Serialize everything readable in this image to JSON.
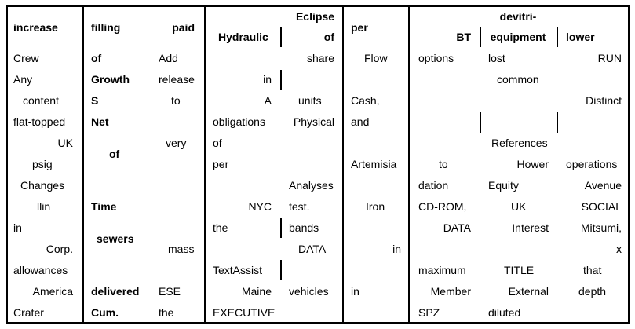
{
  "headers": {
    "increase": "increase",
    "filling": "filling",
    "paid": "paid",
    "hydraulic": "Hydraulic",
    "eclipse": "Eclipse",
    "of": "of",
    "per": "per",
    "devitri": "devitri-",
    "bt": "BT",
    "equipment": "equipment",
    "lower": "lower"
  },
  "col1": {
    "r1": "Crew",
    "r2": "Any",
    "r3": "content",
    "r4": "flat-topped",
    "r5": "UK",
    "r6": "psig",
    "r7": "Changes",
    "r8": "llin",
    "r9": "in",
    "r10": "Corp.",
    "r11": "allowances",
    "r12": "America",
    "r13": "Crater"
  },
  "col2": {
    "r1": "of",
    "r2": "Growth",
    "r3": "S",
    "r4": "Net",
    "r5": "of",
    "r8": "Time",
    "r9": "sewers",
    "r12": "delivered",
    "r13": "Cum."
  },
  "col3": {
    "r1": "Add",
    "r2": "release",
    "r3": "to",
    "r5": "very",
    "r10": "mass",
    "r12": "ESE",
    "r13": "the"
  },
  "col4": {
    "r2": "in",
    "r3": "A",
    "r4": "obligations",
    "r5": "of",
    "r6": "per",
    "r8": "NYC",
    "r9": "the",
    "r11": "TextAssist",
    "r12": "Maine",
    "r13": "EXECUTIVE"
  },
  "col5": {
    "r1": "share",
    "r3": "units",
    "r4": "Physical",
    "r7": "Analyses",
    "r8": "test.",
    "r9": "bands",
    "r10": "DATA",
    "r12": "vehicles"
  },
  "col6": {
    "r1": "Flow",
    "r3": "Cash,",
    "r4": "and",
    "r6": "Artemisia",
    "r8": "Iron",
    "r10": "in",
    "r12": "in"
  },
  "col7": {
    "r1": "options",
    "r6": "to",
    "r7": "dation",
    "r8": "CD-ROM,",
    "r9": "DATA",
    "r11": "maximum",
    "r12": "Member",
    "r13": "SPZ"
  },
  "col8": {
    "r1": "lost",
    "r2": "common",
    "r5": "References",
    "r6": "Hower",
    "r7": "Equity",
    "r8": "UK",
    "r9": "Interest",
    "r11": "TITLE",
    "r12": "External",
    "r13": "diluted"
  },
  "col9": {
    "r1": "RUN",
    "r3": "Distinct",
    "r6": "operations",
    "r7": "Avenue",
    "r8": "SOCIAL",
    "r9": "Mitsumi,",
    "r10": "x",
    "r11": "that",
    "r12": "depth"
  }
}
